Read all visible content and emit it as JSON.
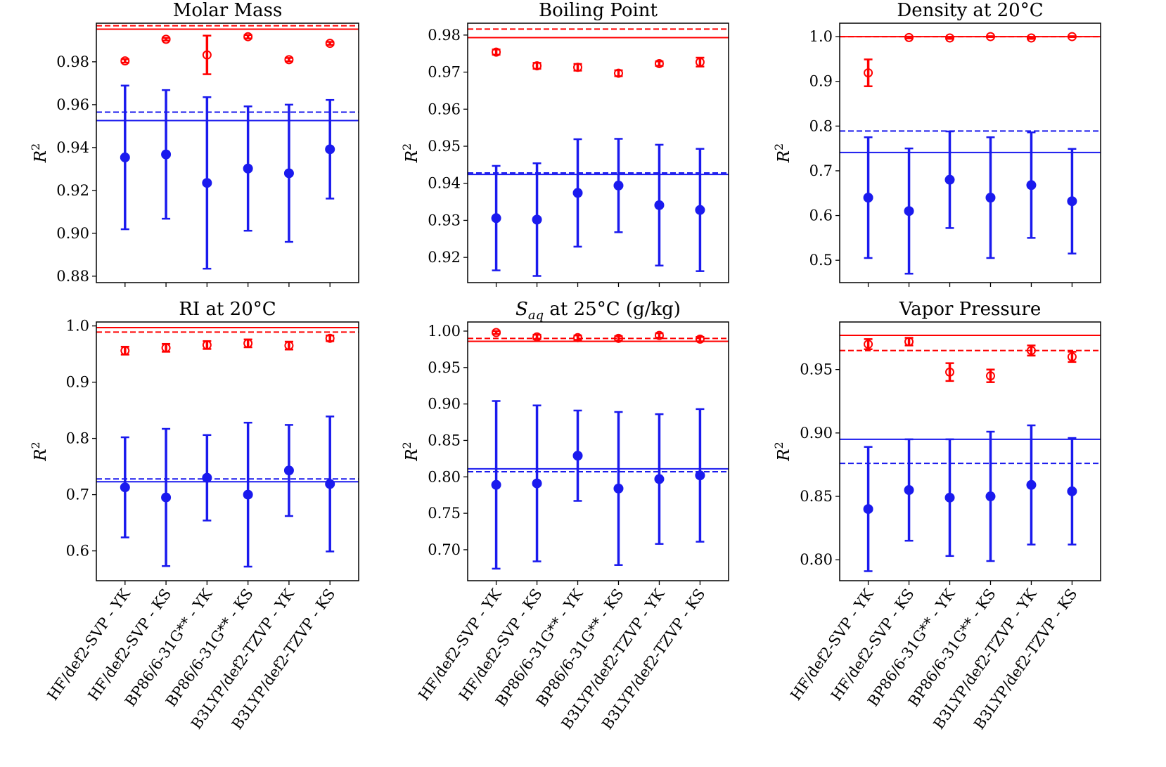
{
  "categories": [
    "HF/def2-SVP - YK",
    "HF/def2-SVP - KS",
    "BP86/6-31G** - YK",
    "BP86/6-31G** - KS",
    "B3LYP/def2-TZVP - YK",
    "B3LYP/def2-TZVP - KS"
  ],
  "colors": {
    "red": "#ff0000",
    "blue": "#1a1aee"
  },
  "chart_data": [
    {
      "type": "scatter",
      "title": "Molar Mass",
      "ylabel": "R2",
      "ylim": [
        0.877,
        0.998
      ],
      "yticks": [
        0.88,
        0.9,
        0.92,
        0.94,
        0.96,
        0.98
      ],
      "yticklabels": [
        "0.88",
        "0.90",
        "0.92",
        "0.94",
        "0.96",
        "0.98"
      ],
      "series": [
        {
          "color": "red",
          "marker": "open-circle",
          "values": [
            0.9804,
            0.9905,
            0.9832,
            0.9917,
            0.981,
            0.9886
          ],
          "err": [
            0.0008,
            0.0006,
            0.009,
            0.0008,
            0.0008,
            0.0007
          ]
        },
        {
          "color": "blue",
          "marker": "filled-circle",
          "values": [
            0.9354,
            0.9368,
            0.9235,
            0.9302,
            0.928,
            0.9392
          ],
          "err": [
            0.0335,
            0.03,
            0.04,
            0.029,
            0.032,
            0.023
          ]
        }
      ],
      "hlines": [
        {
          "color": "red",
          "style": "solid",
          "y": 0.9952
        },
        {
          "color": "red",
          "style": "dashed",
          "y": 0.9968
        },
        {
          "color": "blue",
          "style": "solid",
          "y": 0.9526
        },
        {
          "color": "blue",
          "style": "dashed",
          "y": 0.9565
        }
      ]
    },
    {
      "type": "scatter",
      "title": "Boiling Point",
      "ylabel": "R2",
      "ylim": [
        0.9132,
        0.9832
      ],
      "yticks": [
        0.92,
        0.93,
        0.94,
        0.95,
        0.96,
        0.97,
        0.98
      ],
      "yticklabels": [
        "0.92",
        "0.93",
        "0.94",
        "0.95",
        "0.96",
        "0.97",
        "0.98"
      ],
      "series": [
        {
          "color": "red",
          "marker": "open-circle",
          "values": [
            0.9754,
            0.9717,
            0.9713,
            0.9697,
            0.9723,
            0.9727
          ],
          "err": [
            0.0007,
            0.0008,
            0.0009,
            0.0008,
            0.0006,
            0.0012
          ]
        },
        {
          "color": "blue",
          "marker": "filled-circle",
          "values": [
            0.9306,
            0.9302,
            0.9374,
            0.9394,
            0.9341,
            0.9328
          ],
          "err": [
            0.0141,
            0.0152,
            0.0145,
            0.0126,
            0.0163,
            0.0165
          ]
        }
      ],
      "hlines": [
        {
          "color": "red",
          "style": "solid",
          "y": 0.9793
        },
        {
          "color": "red",
          "style": "dashed",
          "y": 0.9816
        },
        {
          "color": "blue",
          "style": "solid",
          "y": 0.9424
        },
        {
          "color": "blue",
          "style": "dashed",
          "y": 0.9428
        }
      ]
    },
    {
      "type": "scatter",
      "title": "Density at 20°C",
      "ylabel": "R2",
      "ylim": [
        0.45,
        1.03
      ],
      "yticks": [
        0.5,
        0.6,
        0.7,
        0.8,
        0.9,
        1.0
      ],
      "yticklabels": [
        "0.5",
        "0.6",
        "0.7",
        "0.8",
        "0.9",
        "1.0"
      ],
      "series": [
        {
          "color": "red",
          "marker": "open-circle",
          "values": [
            0.919,
            0.998,
            0.997,
            1.0,
            0.997,
            1.0
          ],
          "err": [
            0.03,
            0.002,
            0.002,
            0.001,
            0.002,
            0.001
          ]
        },
        {
          "color": "blue",
          "marker": "filled-circle",
          "values": [
            0.64,
            0.61,
            0.68,
            0.64,
            0.668,
            0.632
          ],
          "err": [
            0.135,
            0.14,
            0.108,
            0.135,
            0.118,
            0.117
          ]
        }
      ],
      "hlines": [
        {
          "color": "red",
          "style": "solid",
          "y": 1.0
        },
        {
          "color": "red",
          "style": "dashed",
          "y": 1.0
        },
        {
          "color": "blue",
          "style": "solid",
          "y": 0.741
        },
        {
          "color": "blue",
          "style": "dashed",
          "y": 0.789
        }
      ]
    },
    {
      "type": "scatter",
      "title": "RI at 20°C",
      "ylabel": "R2",
      "ylim": [
        0.547,
        1.007
      ],
      "yticks": [
        0.6,
        0.7,
        0.8,
        0.9,
        1.0
      ],
      "yticklabels": [
        "0.6",
        "0.7",
        "0.8",
        "0.9",
        "1.0"
      ],
      "series": [
        {
          "color": "red",
          "marker": "open-circle",
          "values": [
            0.956,
            0.961,
            0.966,
            0.969,
            0.965,
            0.978
          ],
          "err": [
            0.007,
            0.007,
            0.007,
            0.007,
            0.007,
            0.005
          ]
        },
        {
          "color": "blue",
          "marker": "filled-circle",
          "values": [
            0.713,
            0.695,
            0.73,
            0.7,
            0.743,
            0.719
          ],
          "err": [
            0.089,
            0.122,
            0.076,
            0.128,
            0.081,
            0.12
          ]
        }
      ],
      "hlines": [
        {
          "color": "red",
          "style": "solid",
          "y": 0.997
        },
        {
          "color": "red",
          "style": "dashed",
          "y": 0.989
        },
        {
          "color": "blue",
          "style": "solid",
          "y": 0.723
        },
        {
          "color": "blue",
          "style": "dashed",
          "y": 0.728
        }
      ]
    },
    {
      "type": "scatter",
      "title": "S_aq at 25°C (g/kg)",
      "title_parts": {
        "main": "S",
        "sub": "aq",
        "rest": " at 25°C (g/kg)"
      },
      "ylabel": "R2",
      "ylim": [
        0.6575,
        1.0125
      ],
      "yticks": [
        0.7,
        0.75,
        0.8,
        0.85,
        0.9,
        0.95,
        1.0
      ],
      "yticklabels": [
        "0.70",
        "0.75",
        "0.80",
        "0.85",
        "0.90",
        "0.95",
        "1.00"
      ],
      "series": [
        {
          "color": "red",
          "marker": "open-circle",
          "values": [
            0.998,
            0.992,
            0.991,
            0.99,
            0.994,
            0.989
          ],
          "err": [
            0.002,
            0.003,
            0.003,
            0.003,
            0.003,
            0.003
          ]
        },
        {
          "color": "blue",
          "marker": "filled-circle",
          "values": [
            0.789,
            0.791,
            0.829,
            0.784,
            0.797,
            0.802
          ],
          "err": [
            0.115,
            0.107,
            0.062,
            0.105,
            0.089,
            0.091
          ]
        }
      ],
      "hlines": [
        {
          "color": "red",
          "style": "solid",
          "y": 0.986
        },
        {
          "color": "red",
          "style": "dashed",
          "y": 0.99
        },
        {
          "color": "blue",
          "style": "solid",
          "y": 0.811
        },
        {
          "color": "blue",
          "style": "dashed",
          "y": 0.807
        }
      ]
    },
    {
      "type": "scatter",
      "title": "Vapor Pressure",
      "ylabel": "R2",
      "ylim": [
        0.7835,
        0.9875
      ],
      "yticks": [
        0.8,
        0.85,
        0.9,
        0.95
      ],
      "yticklabels": [
        "0.80",
        "0.85",
        "0.90",
        "0.95"
      ],
      "series": [
        {
          "color": "red",
          "marker": "open-circle",
          "values": [
            0.97,
            0.972,
            0.948,
            0.945,
            0.965,
            0.96
          ],
          "err": [
            0.004,
            0.003,
            0.007,
            0.005,
            0.004,
            0.004
          ]
        },
        {
          "color": "blue",
          "marker": "filled-circle",
          "values": [
            0.84,
            0.855,
            0.849,
            0.85,
            0.859,
            0.854
          ],
          "err": [
            0.049,
            0.04,
            0.046,
            0.051,
            0.047,
            0.042
          ]
        }
      ],
      "hlines": [
        {
          "color": "red",
          "style": "solid",
          "y": 0.977
        },
        {
          "color": "red",
          "style": "dashed",
          "y": 0.965
        },
        {
          "color": "blue",
          "style": "solid",
          "y": 0.895
        },
        {
          "color": "blue",
          "style": "dashed",
          "y": 0.876
        }
      ]
    }
  ]
}
